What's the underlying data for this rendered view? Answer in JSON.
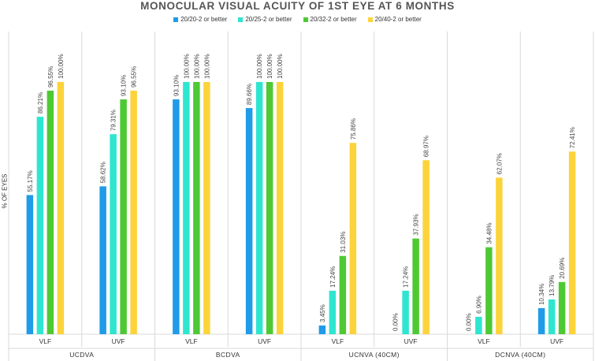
{
  "chart_data": {
    "type": "bar",
    "title": "MONOCULAR VISUAL ACUITY OF 1ST EYE AT 6 MONTHS",
    "ylabel": "% OF EYES",
    "xlabel": "",
    "ylim": [
      0,
      100
    ],
    "legend_position": "top-center",
    "groups": [
      {
        "name": "UCDVA",
        "categories": [
          "VLF",
          "UVF"
        ]
      },
      {
        "name": "BCDVA",
        "categories": [
          "VLF",
          "UVF"
        ]
      },
      {
        "name": "UCNVA (40CM)",
        "categories": [
          "VLF",
          "UVF"
        ]
      },
      {
        "name": "DCNVA (40CM)",
        "categories": [
          "VLF",
          "UVF"
        ]
      }
    ],
    "series": [
      {
        "name": "20/20-2 or better",
        "color": "#1f9be8",
        "values": [
          55.17,
          58.62,
          93.1,
          89.66,
          3.45,
          0.0,
          0.0,
          10.34
        ],
        "labels": [
          "55.17%",
          "58.62%",
          "93.10%",
          "89.66%",
          "3.45%",
          "0.00%",
          "0.00%",
          "10.34%"
        ]
      },
      {
        "name": "20/25-2 or better",
        "color": "#2ee6d0",
        "values": [
          86.21,
          79.31,
          100.0,
          100.0,
          17.24,
          17.24,
          6.9,
          13.79
        ],
        "labels": [
          "86.21%",
          "79.31%",
          "100.00%",
          "100.00%",
          "17.24%",
          "17.24%",
          "6.90%",
          "13.79%"
        ]
      },
      {
        "name": "20/32-2 or better",
        "color": "#4ec934",
        "values": [
          96.55,
          93.1,
          100.0,
          100.0,
          31.03,
          37.93,
          34.48,
          20.69
        ],
        "labels": [
          "96.55%",
          "93.10%",
          "100.00%",
          "100.00%",
          "31.03%",
          "37.93%",
          "34.48%",
          "20.69%"
        ]
      },
      {
        "name": "20/40-2 or better",
        "color": "#fcd33a",
        "values": [
          100.0,
          96.55,
          100.0,
          100.0,
          75.86,
          68.97,
          62.07,
          72.41
        ],
        "labels": [
          "100.00%",
          "96.55%",
          "100.00%",
          "100.00%",
          "75.86%",
          "68.97%",
          "62.07%",
          "72.41%"
        ]
      }
    ]
  }
}
